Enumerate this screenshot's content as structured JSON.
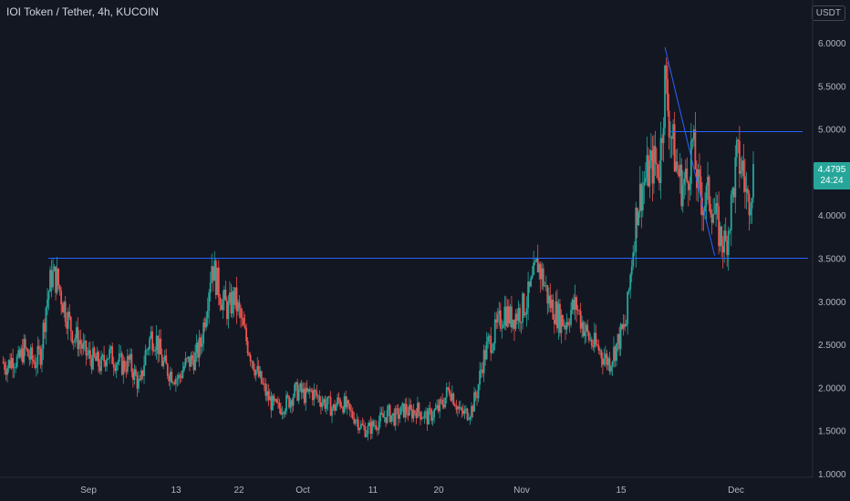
{
  "header": {
    "title": "IOI Token / Tether, 4h, KUCOIN",
    "currency": "USDT"
  },
  "colors": {
    "background": "#131722",
    "up": "#26a69a",
    "down": "#ef5350",
    "trendline": "#2962ff",
    "axis_text": "#b2b5be"
  },
  "last_price": {
    "value": "4.4795",
    "countdown": "24:24"
  },
  "chart_data": {
    "type": "candlestick",
    "title": "IOI Token / Tether, 4h, KUCOIN",
    "xlabel": "",
    "ylabel": "",
    "ylim": [
      1.0,
      6.2
    ],
    "y_ticks": [
      "6.0000",
      "5.5000",
      "5.0000",
      "4.5000",
      "4.0000",
      "3.5000",
      "3.0000",
      "2.5000",
      "2.0000",
      "1.5000",
      "1.0000"
    ],
    "x_ticks": [
      "Sep",
      "13",
      "22",
      "Oct",
      "11",
      "20",
      "Nov",
      "15",
      "Dec"
    ],
    "grid": false,
    "series": [
      {
        "values": [
          2.3,
          2.25,
          2.35,
          2.3,
          2.45,
          2.35,
          2.3,
          2.4,
          2.95,
          3.3,
          3.25,
          3.0,
          2.8,
          2.6,
          2.55,
          2.4,
          2.35,
          2.3,
          2.25,
          2.4,
          2.35,
          2.3,
          2.25,
          2.3,
          2.15,
          2.0,
          2.4,
          2.6,
          2.55,
          2.3,
          2.2,
          2.15,
          2.1,
          2.25,
          2.3,
          2.35,
          2.5,
          2.95,
          3.45,
          3.2,
          3.0,
          2.9,
          3.05,
          2.85,
          2.6,
          2.4,
          2.2,
          2.05,
          1.9,
          1.8,
          1.75,
          1.8,
          1.85,
          1.95,
          1.95,
          1.9,
          1.95,
          1.9,
          1.85,
          1.8,
          1.75,
          1.85,
          1.8,
          1.7,
          1.65,
          1.55,
          1.5,
          1.55,
          1.6,
          1.65,
          1.7,
          1.65,
          1.7,
          1.75,
          1.7,
          1.75,
          1.7,
          1.65,
          1.7,
          1.75,
          1.85,
          2.0,
          1.85,
          1.7,
          1.7,
          1.75,
          1.95,
          2.3,
          2.5,
          2.6,
          2.75,
          2.9,
          2.8,
          2.85,
          2.9,
          3.0,
          3.2,
          3.45,
          3.25,
          3.0,
          2.9,
          2.8,
          2.75,
          2.9,
          2.95,
          2.75,
          2.6,
          2.5,
          2.45,
          2.35,
          2.3,
          2.45,
          2.6,
          2.75,
          3.5,
          4.1,
          4.35,
          4.5,
          4.6,
          4.55,
          5.55,
          5.0,
          4.6,
          4.35,
          4.4,
          4.85,
          4.3,
          4.15,
          4.25,
          4.0,
          3.75,
          3.65,
          4.1,
          4.65,
          4.55,
          4.15,
          4.48
        ]
      }
    ],
    "horizontal_lines": [
      3.5,
      4.97
    ],
    "trendline": [
      {
        "x": 120,
        "y": 5.95
      },
      {
        "x": 129,
        "y": 3.53
      }
    ]
  }
}
